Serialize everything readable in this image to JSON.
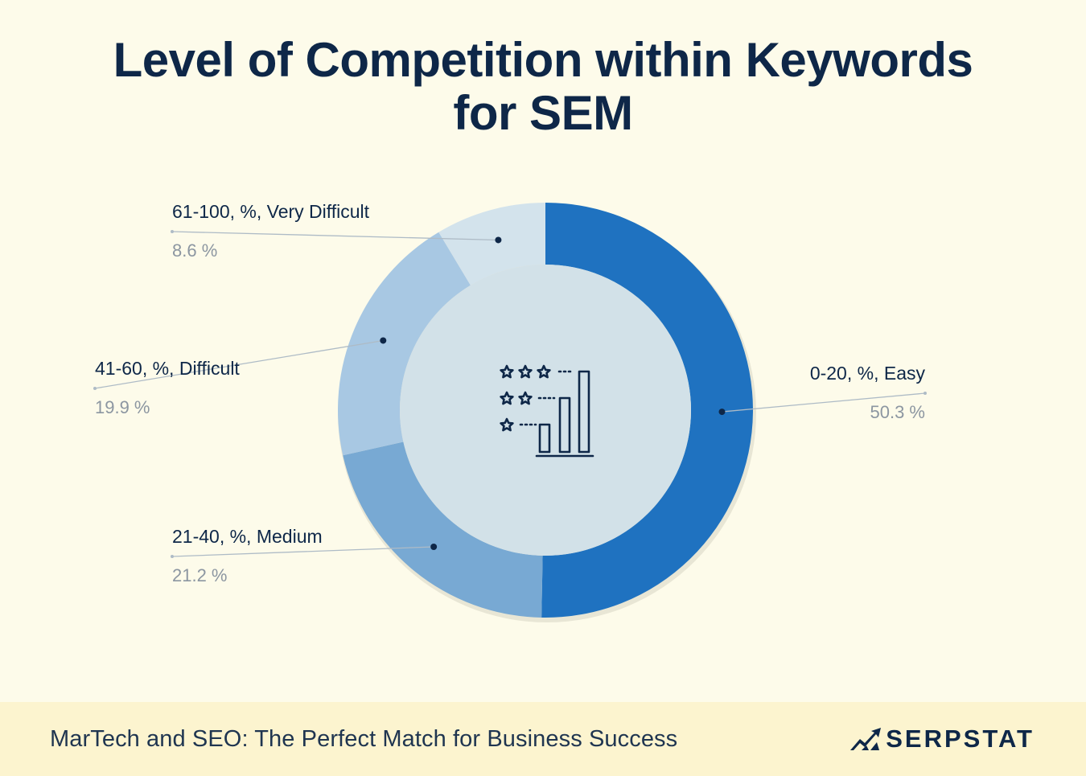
{
  "title_lines": [
    "Level of Competition within Keywords",
    "for SEM"
  ],
  "chart_data": {
    "type": "donut",
    "title": "Level of Competition within Keywords for SEM",
    "slices": [
      {
        "label": "0-20, %, Easy",
        "value": 50.3,
        "value_label": "50.3 %",
        "color": "#1f72c0"
      },
      {
        "label": "21-40, %, Medium",
        "value": 21.2,
        "value_label": "21.2 %",
        "color": "#78a9d3"
      },
      {
        "label": "41-60, %, Difficult",
        "value": 19.9,
        "value_label": "19.9 %",
        "color": "#a8c8e3"
      },
      {
        "label": "61-100, %, Very Difficult",
        "value": 8.6,
        "value_label": "8.6 %",
        "color": "#d3e3ec"
      }
    ],
    "center_icon": "star-rating-bar-chart-icon",
    "center_color": "#d2e1e8"
  },
  "footer": {
    "text": "MarTech and SEO: The Perfect Match for Business Success",
    "brand_name": "SERPSTAT",
    "brand_icon": "serpstat-logo-icon"
  }
}
